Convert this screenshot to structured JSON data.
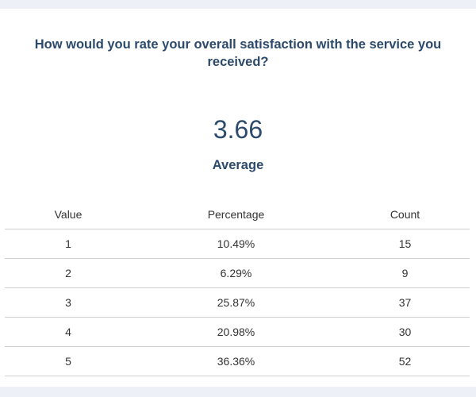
{
  "question": "How would you rate your overall satisfaction with the service you received?",
  "average": {
    "value": "3.66",
    "label": "Average"
  },
  "table": {
    "headers": {
      "value": "Value",
      "percentage": "Percentage",
      "count": "Count"
    },
    "rows": [
      {
        "value": "1",
        "percentage": "10.49%",
        "count": "15"
      },
      {
        "value": "2",
        "percentage": "6.29%",
        "count": "9"
      },
      {
        "value": "3",
        "percentage": "25.87%",
        "count": "37"
      },
      {
        "value": "4",
        "percentage": "20.98%",
        "count": "30"
      },
      {
        "value": "5",
        "percentage": "36.36%",
        "count": "52"
      }
    ]
  },
  "colors": {
    "heading": "#2c4a6b",
    "text": "#333333",
    "background": "#eef0f7",
    "card": "#ffffff",
    "divider": "#cfcfcf"
  }
}
